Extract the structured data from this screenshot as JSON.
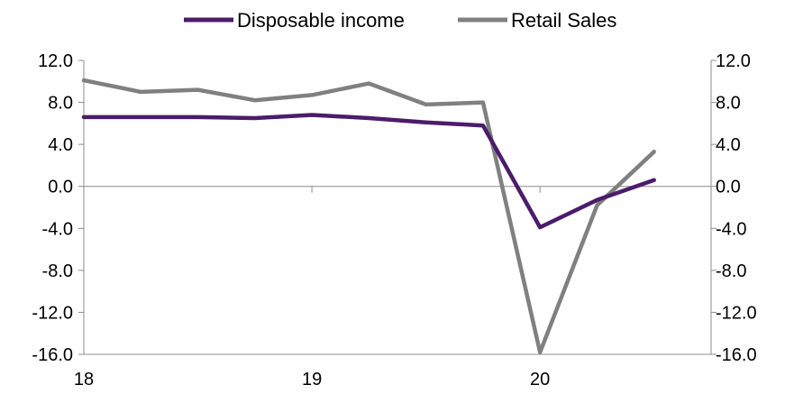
{
  "chart_data": {
    "type": "line",
    "title": "",
    "xlabel": "",
    "ylabel": "",
    "x_tick_labels": [
      "18",
      "19",
      "20"
    ],
    "y_tick_labels": [
      "12.0",
      "8.0",
      "4.0",
      "0.0",
      "-4.0",
      "-8.0",
      "-12.0",
      "-16.0"
    ],
    "y_ticks": [
      12,
      8,
      4,
      0,
      -4,
      -8,
      -12,
      -16
    ],
    "ylim": [
      -16,
      12
    ],
    "xlim": [
      18.0,
      20.75
    ],
    "x": [
      18.0,
      18.25,
      18.5,
      18.75,
      19.0,
      19.25,
      19.5,
      19.75,
      20.0,
      20.25,
      20.5
    ],
    "series": [
      {
        "name": "Disposable income",
        "color": "#4b1c6b",
        "values": [
          6.6,
          6.6,
          6.6,
          6.5,
          6.8,
          6.5,
          6.1,
          5.8,
          -3.9,
          -1.3,
          0.6
        ]
      },
      {
        "name": "Retail Sales",
        "color": "#808080",
        "values": [
          10.1,
          9.0,
          9.2,
          8.2,
          8.7,
          9.8,
          7.8,
          8.0,
          -15.8,
          -1.8,
          3.3
        ]
      }
    ],
    "legend_position": "top-center",
    "dual_y_axis": true,
    "grid": false
  }
}
